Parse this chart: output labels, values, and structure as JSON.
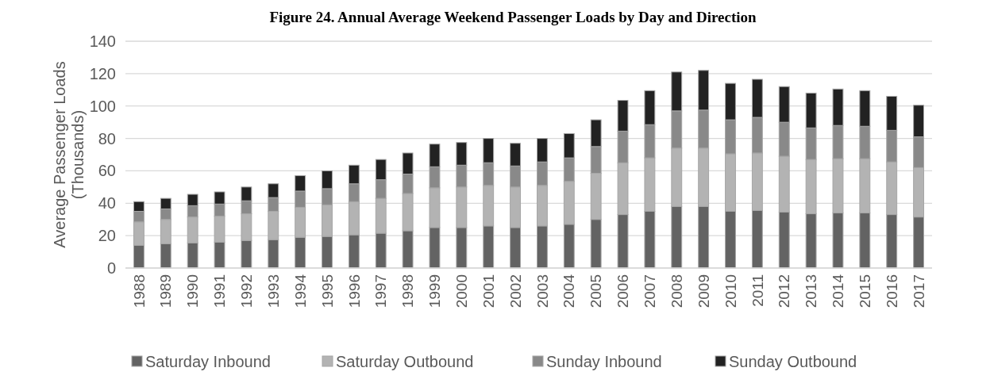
{
  "chart_data": {
    "type": "bar",
    "stacked": true,
    "title": "Figure 24. Annual Average Weekend Passenger Loads by Day and Direction",
    "ylabel": "Average Passenger Loads (Thousands)",
    "categories": [
      "1988",
      "1989",
      "1990",
      "1991",
      "1992",
      "1993",
      "1994",
      "1995",
      "1996",
      "1997",
      "1998",
      "1999",
      "2000",
      "2001",
      "2002",
      "2003",
      "2004",
      "2005",
      "2006",
      "2007",
      "2008",
      "2009",
      "2010",
      "2011",
      "2012",
      "2013",
      "2014",
      "2015",
      "2016",
      "2017"
    ],
    "series": [
      {
        "name": "Saturday Inbound",
        "color": "#636363",
        "values": [
          14,
          15,
          15.5,
          16,
          17,
          17.5,
          19,
          19.5,
          20.5,
          21.5,
          23,
          25,
          25,
          26,
          25,
          26,
          27,
          30,
          33,
          35,
          38,
          38,
          35,
          35.5,
          34.5,
          33.5,
          34,
          34,
          33,
          31.5
        ]
      },
      {
        "name": "Saturday Outbound",
        "color": "#b3b3b3",
        "values": [
          14.5,
          15,
          16,
          16,
          16.5,
          17.5,
          18.5,
          19.5,
          20.5,
          21.5,
          23,
          24.5,
          25,
          25,
          25,
          25,
          26.5,
          28.5,
          32,
          33,
          36,
          36,
          35.5,
          35.5,
          34.5,
          33.5,
          33.5,
          33.5,
          32.5,
          30.5
        ]
      },
      {
        "name": "Sunday Inbound",
        "color": "#898989",
        "values": [
          6.5,
          6.5,
          7,
          7.5,
          8,
          8.5,
          10,
          10,
          11,
          11.5,
          12,
          13,
          13.5,
          14,
          13,
          14.5,
          14.5,
          16.5,
          19.5,
          20.5,
          23,
          23.5,
          21,
          22,
          21,
          19.5,
          20.5,
          20,
          19.5,
          19
        ]
      },
      {
        "name": "Sunday Outbound",
        "color": "#222222",
        "values": [
          6,
          6.5,
          7,
          7.5,
          8.5,
          8.5,
          9.5,
          11,
          11.5,
          12.5,
          13,
          14,
          14,
          15,
          14,
          14.5,
          15,
          16.5,
          19,
          21,
          24,
          24.5,
          22.5,
          23.5,
          22,
          21.5,
          22.5,
          22,
          21,
          19.5
        ]
      }
    ],
    "ylim": [
      0,
      140
    ],
    "yticks": [
      0,
      20,
      40,
      60,
      80,
      100,
      120,
      140
    ],
    "grid": "y",
    "legend": "bottom"
  }
}
